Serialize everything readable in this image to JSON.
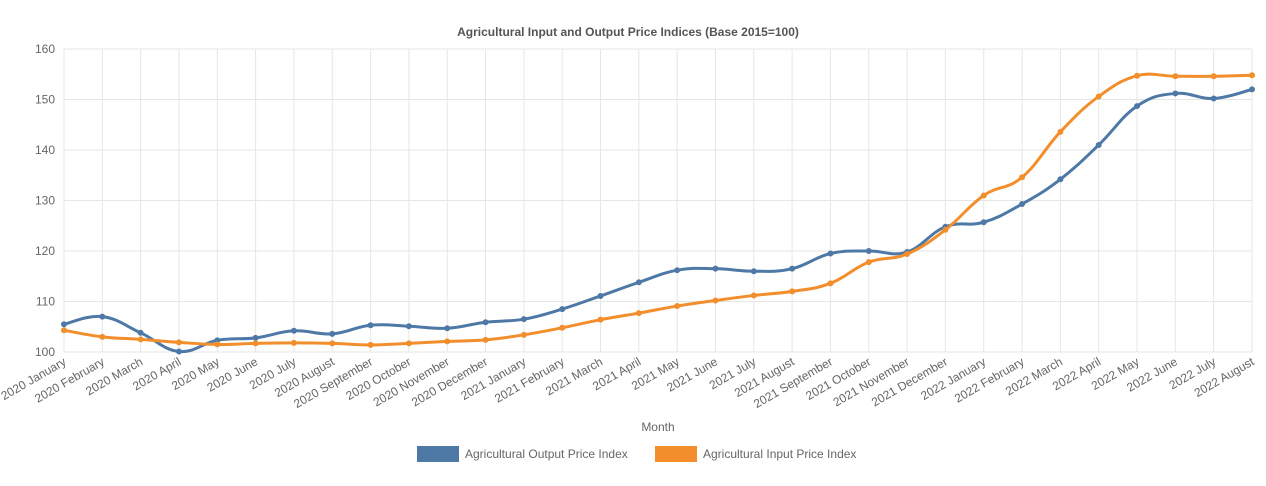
{
  "chart_data": {
    "type": "line",
    "title": "Agricultural Input and Output Price Indices (Base 2015=100)",
    "xlabel": "Month",
    "ylabel": "",
    "ylim": [
      100,
      160
    ],
    "yticks": [
      100,
      110,
      120,
      130,
      140,
      150,
      160
    ],
    "grid": true,
    "legend_position": "bottom",
    "categories": [
      "2020 January",
      "2020 February",
      "2020 March",
      "2020 April",
      "2020 May",
      "2020 June",
      "2020 July",
      "2020 August",
      "2020 September",
      "2020 October",
      "2020 November",
      "2020 December",
      "2021 January",
      "2021 February",
      "2021 March",
      "2021 April",
      "2021 May",
      "2021 June",
      "2021 July",
      "2021 August",
      "2021 September",
      "2021 October",
      "2021 November",
      "2021 December",
      "2022 January",
      "2022 February",
      "2022 March",
      "2022 April",
      "2022 May",
      "2022 June",
      "2022 July",
      "2022 August"
    ],
    "series": [
      {
        "name": "Agricultural Output Price Index",
        "color": "#4e79a7",
        "values": [
          105.5,
          107.0,
          103.8,
          100.1,
          102.3,
          102.8,
          104.2,
          103.6,
          105.3,
          105.1,
          104.7,
          105.9,
          106.5,
          108.5,
          111.1,
          113.8,
          116.2,
          116.5,
          116.0,
          116.5,
          119.5,
          120.0,
          119.8,
          124.8,
          125.7,
          129.3,
          134.2,
          141.0,
          148.7,
          151.2,
          150.2,
          152.0
        ]
      },
      {
        "name": "Agricultural Input Price Index",
        "color": "#f28e2b",
        "values": [
          104.3,
          103.0,
          102.5,
          101.9,
          101.5,
          101.7,
          101.8,
          101.7,
          101.4,
          101.7,
          102.1,
          102.4,
          103.4,
          104.8,
          106.4,
          107.7,
          109.1,
          110.2,
          111.2,
          112.0,
          113.6,
          117.8,
          119.4,
          124.2,
          131.0,
          134.6,
          143.6,
          150.6,
          154.7,
          154.6,
          154.6,
          154.8
        ]
      }
    ]
  }
}
